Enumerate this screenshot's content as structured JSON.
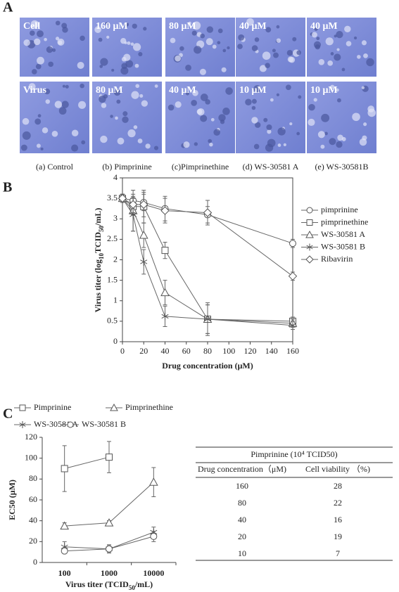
{
  "panel_labels": [
    "A",
    "B",
    "C"
  ],
  "photos": {
    "labels": [
      [
        "Cell",
        "160 μM",
        "80 μM",
        "40 μM",
        "40 μM"
      ],
      [
        "Virus",
        "80 μM",
        "40 μM",
        "10 μM",
        "10 μM"
      ]
    ],
    "captions": [
      "(a) Control",
      "(b) Pimprinine",
      "(c)Pimprinethine",
      "(d) WS-30581 A",
      "(e) WS-30581B"
    ]
  },
  "chart_data": [
    {
      "type": "line",
      "x": [
        0,
        10,
        20,
        40,
        80,
        160
      ],
      "xlim": [
        0,
        160
      ],
      "xticks": [
        0,
        20,
        40,
        60,
        80,
        100,
        120,
        140,
        160
      ],
      "ylim": [
        0,
        4
      ],
      "yticks": [
        0,
        0.5,
        1,
        1.5,
        2,
        2.5,
        3,
        3.5,
        4
      ],
      "x_label": "Drug concentration (μM)",
      "y_label": [
        "Virus titer (log",
        "10",
        "TCID",
        "50",
        "/mL)"
      ],
      "legend": "right",
      "frame": "box",
      "series": [
        {
          "name": "pimprinine",
          "marker": "circle",
          "color": "#555",
          "values": [
            3.5,
            3.45,
            3.4,
            3.25,
            3.1,
            2.4
          ],
          "errors": [
            0.1,
            0.15,
            0.2,
            0.3,
            0.2,
            0.1
          ]
        },
        {
          "name": "pimprinethine",
          "marker": "square",
          "color": "#555",
          "values": [
            3.5,
            3.3,
            3.3,
            2.23,
            0.55,
            0.5
          ],
          "errors": [
            0.1,
            0.2,
            0.4,
            0.2,
            0.35,
            0.1
          ]
        },
        {
          "name": "WS-30581 A",
          "marker": "triangle",
          "color": "#555",
          "values": [
            3.5,
            3.2,
            2.6,
            1.2,
            0.55,
            0.45
          ],
          "errors": [
            0.1,
            0.5,
            0.3,
            0.3,
            0.35,
            0.1
          ]
        },
        {
          "name": "WS-30581 B",
          "marker": "star",
          "color": "#555",
          "values": [
            3.5,
            3.1,
            1.95,
            0.62,
            0.55,
            0.4
          ],
          "errors": [
            0.1,
            0.4,
            0.3,
            0.25,
            0.4,
            0.1
          ]
        },
        {
          "name": "Ribavirin",
          "marker": "diamond",
          "color": "#555",
          "values": [
            3.5,
            3.35,
            3.35,
            3.2,
            3.15,
            1.6
          ],
          "errors": [
            0.1,
            0.2,
            0.3,
            0.3,
            0.3,
            0.1
          ]
        }
      ]
    },
    {
      "type": "line",
      "categories": [
        "100",
        "1000",
        "10000"
      ],
      "ylim": [
        0,
        120
      ],
      "yticks": [
        0,
        20,
        40,
        60,
        80,
        100,
        120
      ],
      "x_label": [
        "Virus titer (TCID",
        "50",
        "/mL)"
      ],
      "y_label": [
        "EC50 (μM)"
      ],
      "legend": "top",
      "frame": "axes",
      "series": [
        {
          "name": "Pimprinine",
          "marker": "square",
          "color": "#555",
          "values": [
            90,
            101,
            null
          ],
          "errors": [
            22,
            15,
            null
          ]
        },
        {
          "name": "Pimprinethine",
          "marker": "triangle",
          "color": "#555",
          "values": [
            35,
            38,
            77
          ],
          "errors": [
            3,
            2,
            14
          ]
        },
        {
          "name": "WS-30581 A",
          "marker": "star",
          "color": "#555",
          "values": [
            15,
            13,
            29
          ],
          "errors": [
            5,
            4,
            5
          ]
        },
        {
          "name": "WS-30581 B",
          "marker": "circle",
          "color": "#555",
          "values": [
            11,
            13,
            25
          ],
          "errors": [
            2,
            3,
            5
          ]
        }
      ]
    }
  ],
  "table": {
    "title": "Pimprinine (10⁴ TCID50)",
    "header": [
      "Drug concentration（μM)",
      "Cell viability （%)"
    ],
    "rows": [
      [
        160,
        28
      ],
      [
        80,
        22
      ],
      [
        40,
        16
      ],
      [
        20,
        19
      ],
      [
        10,
        7
      ]
    ]
  }
}
